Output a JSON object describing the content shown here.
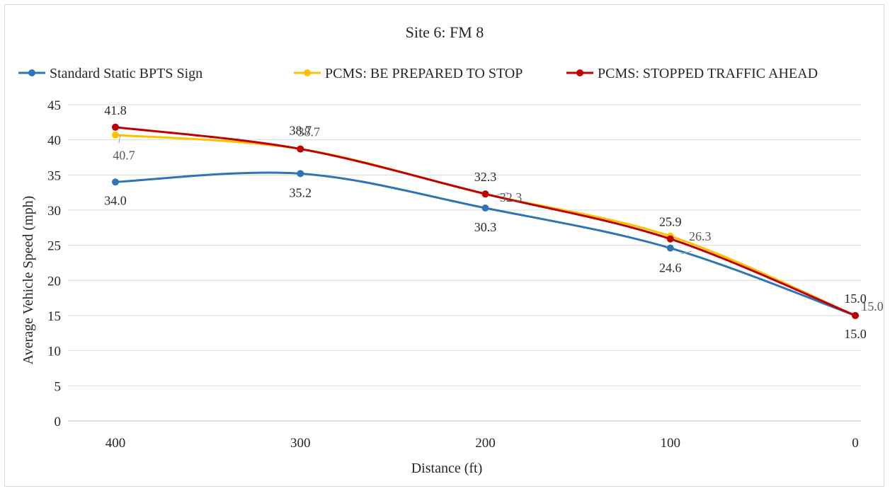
{
  "chart_data": {
    "type": "line",
    "title": "Site 6: FM 8",
    "xlabel": "Distance (ft)",
    "ylabel": "Average Vehicle Speed (mph)",
    "categories": [
      "400",
      "300",
      "200",
      "100",
      "0"
    ],
    "x": [
      400,
      300,
      200,
      100,
      0
    ],
    "x_reversed": true,
    "ylim": [
      0,
      45
    ],
    "y_ticks": [
      0,
      5,
      10,
      15,
      20,
      25,
      30,
      35,
      40,
      45
    ],
    "grid": true,
    "legend_position": "top",
    "smoothed": true,
    "series": [
      {
        "name": "Standard Static BPTS Sign",
        "color": "#2E75B6",
        "values": [
          34.0,
          35.2,
          30.3,
          24.6,
          15.0
        ],
        "labels": [
          "34.0",
          "35.2",
          "30.3",
          "24.6",
          "15.0"
        ]
      },
      {
        "name": "PCMS: BE PREPARED TO STOP",
        "color": "#FFC000",
        "values": [
          40.7,
          38.7,
          32.3,
          26.3,
          15.0
        ],
        "labels": [
          "40.7",
          "38.7",
          "32.3",
          "26.3",
          "15.0"
        ]
      },
      {
        "name": "PCMS: STOPPED TRAFFIC AHEAD",
        "color": "#C00000",
        "values": [
          41.8,
          38.7,
          32.3,
          25.9,
          15.0
        ],
        "labels": [
          "41.8",
          "38.7",
          "32.3",
          "25.9",
          "15.0"
        ]
      }
    ]
  }
}
